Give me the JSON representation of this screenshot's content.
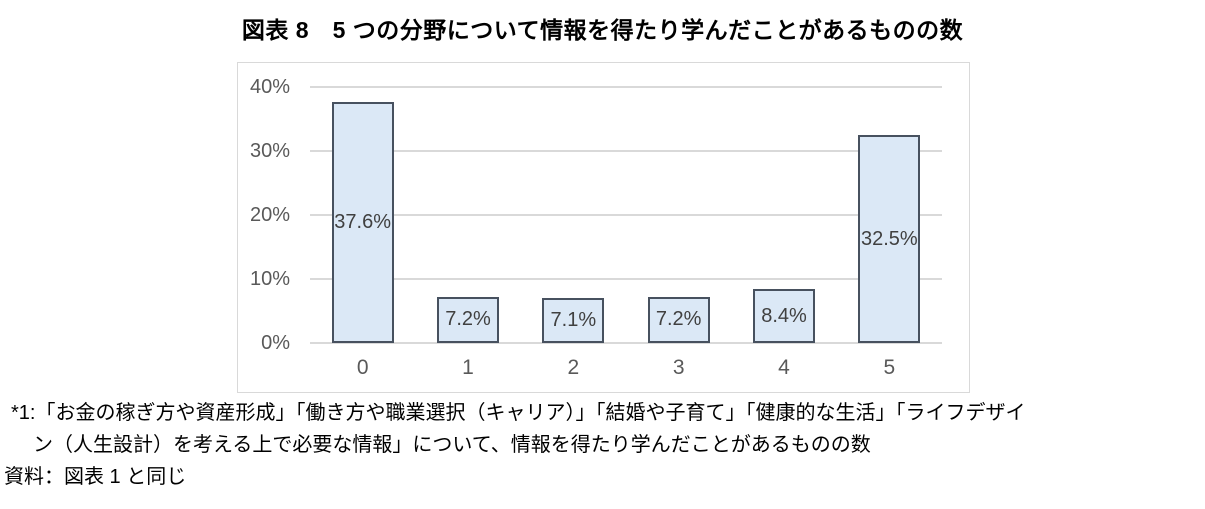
{
  "chart_data": {
    "type": "bar",
    "title": "図表 8　5 つの分野について情報を得たり学んだことがあるものの数",
    "categories": [
      "0",
      "1",
      "2",
      "3",
      "4",
      "5"
    ],
    "values": [
      37.6,
      7.2,
      7.1,
      7.2,
      8.4,
      32.5
    ],
    "data_labels": [
      "37.6%",
      "7.2%",
      "7.1%",
      "7.2%",
      "8.4%",
      "32.5%"
    ],
    "xlabel": "",
    "ylabel": "",
    "ylim": [
      0,
      40
    ],
    "ytick_values": [
      0,
      10,
      20,
      30,
      40
    ],
    "ytick_labels": [
      "0%",
      "10%",
      "20%",
      "30%",
      "40%"
    ],
    "grid": "horizontal",
    "legend": "none",
    "colors": {
      "bar_fill": "#dbe8f6",
      "bar_border": "#47515f",
      "gridline": "#d9d9d9",
      "chart_border": "#d9d9d9",
      "axis_text": "#595959",
      "data_label_text": "#404040"
    }
  },
  "footnotes": {
    "line1": "*1:「お金の稼ぎ方や資産形成」「働き方や職業選択（キャリア）」「結婚や子育て」「健康的な生活」「ライフデザイ",
    "line2": "ン（人生設計）を考える上で必要な情報」について、情報を得たり学んだことがあるものの数",
    "line3": "資料：図表 1 と同じ"
  }
}
